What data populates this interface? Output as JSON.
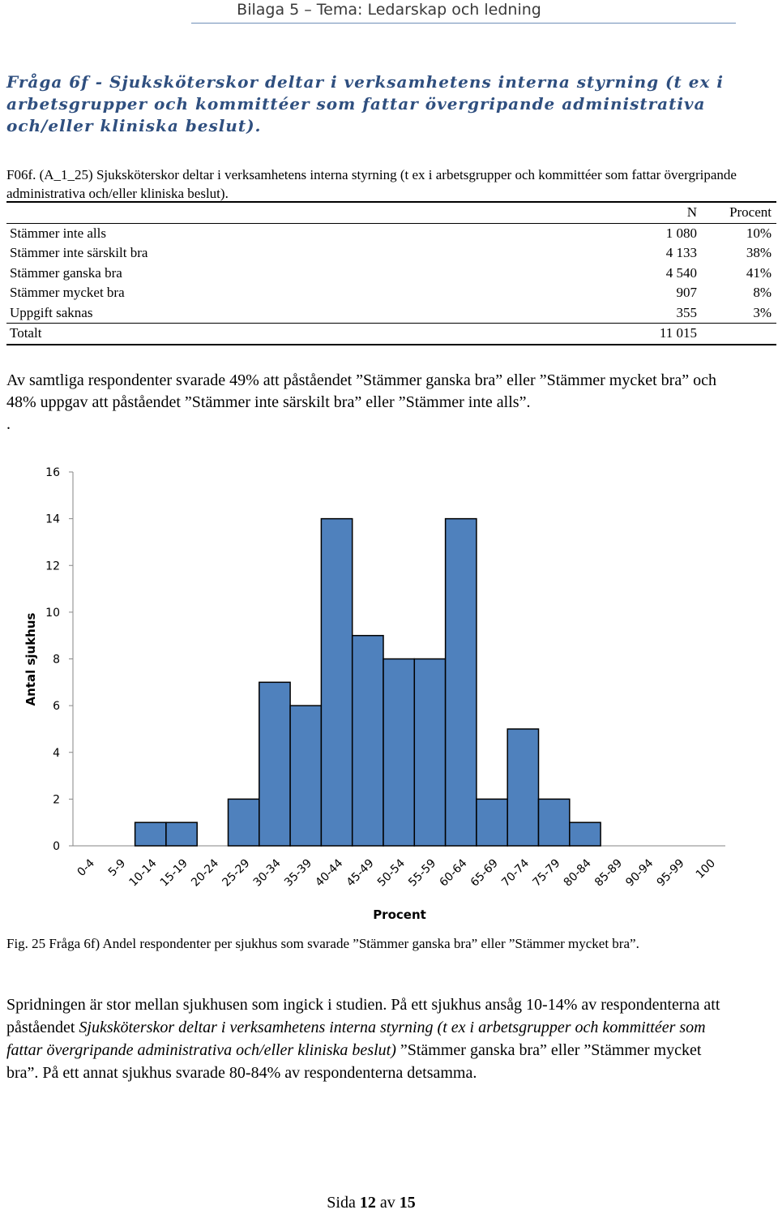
{
  "header": {
    "title": "Bilaga 5 – Tema: Ledarskap och ledning"
  },
  "question_heading": "Fråga 6f - Sjuksköterskor deltar i verksamhetens interna styrning (t ex i arbetsgrupper och kommittéer som fattar övergripande administrativa och/eller kliniska beslut).",
  "item_text": "F06f. (A_1_25) Sjuksköterskor deltar i verksamhetens interna styrning (t ex i arbetsgrupper och kommittéer som fattar övergripande administrativa och/eller kliniska beslut).",
  "table": {
    "columns": [
      "",
      "N",
      "Procent"
    ],
    "rows": [
      {
        "label": "Stämmer inte alls",
        "n": "1 080",
        "pct": "10%"
      },
      {
        "label": "Stämmer inte särskilt bra",
        "n": "4 133",
        "pct": "38%"
      },
      {
        "label": "Stämmer ganska bra",
        "n": "4 540",
        "pct": "41%"
      },
      {
        "label": "Stämmer mycket bra",
        "n": "907",
        "pct": "8%"
      },
      {
        "label": "Uppgift saknas",
        "n": "355",
        "pct": "3%"
      }
    ],
    "total": {
      "label": "Totalt",
      "n": "11 015",
      "pct": ""
    }
  },
  "summary": "Av samtliga respondenter svarade 49% att påståendet ”Stämmer ganska bra” eller ”Stämmer mycket bra” och 48% uppgav att påståendet ”Stämmer inte särskilt bra” eller ”Stämmer inte alls”.",
  "summary_stray": ".",
  "chart_data": {
    "type": "bar",
    "categories": [
      "0-4",
      "5-9",
      "10-14",
      "15-19",
      "20-24",
      "25-29",
      "30-34",
      "35-39",
      "40-44",
      "45-49",
      "50-54",
      "55-59",
      "60-64",
      "65-69",
      "70-74",
      "75-79",
      "80-84",
      "85-89",
      "90-94",
      "95-99",
      "100"
    ],
    "values": [
      0,
      0,
      1,
      1,
      0,
      2,
      7,
      6,
      14,
      9,
      8,
      8,
      14,
      2,
      5,
      2,
      1,
      0,
      0,
      0,
      0
    ],
    "ylim": [
      0,
      16
    ],
    "yticks": [
      0,
      2,
      4,
      6,
      8,
      10,
      12,
      14,
      16
    ],
    "xlabel": "Procent",
    "ylabel": "Antal sjukhus",
    "bar_color": "#4f81bd",
    "grid": false
  },
  "caption": "Fig. 25 Fråga 6f) Andel respondenter per sjukhus som svarade ”Stämmer ganska bra” eller ”Stämmer mycket bra”.",
  "paragraph": {
    "part1": "Spridningen är stor mellan sjukhusen som ingick i studien. På ett sjukhus ansåg 10-14% av respondenterna att påståendet ",
    "italic": "Sjuksköterskor deltar i verksamhetens interna styrning (t ex i arbetsgrupper och kommittéer som fattar övergripande administrativa och/eller kliniska beslut)",
    "part2": " ”Stämmer ganska bra” eller ”Stämmer mycket bra”. På ett annat sjukhus svarade 80-84% av respondenterna detsamma."
  },
  "footer": {
    "prefix": "Sida ",
    "page": "12",
    "mid": " av ",
    "total": "15"
  }
}
